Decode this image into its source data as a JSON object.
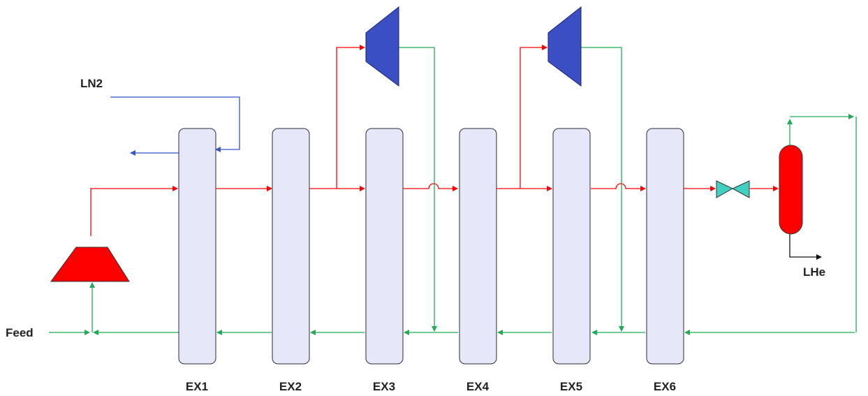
{
  "labels": {
    "ln2": "LN2",
    "feed": "Feed",
    "lhe": "LHe"
  },
  "exchangers": [
    {
      "id": "ex1",
      "label": "EX1"
    },
    {
      "id": "ex2",
      "label": "EX2"
    },
    {
      "id": "ex3",
      "label": "EX3"
    },
    {
      "id": "ex4",
      "label": "EX4"
    },
    {
      "id": "ex5",
      "label": "EX5"
    },
    {
      "id": "ex6",
      "label": "EX6"
    }
  ],
  "equipment": {
    "feed_compressor": "compressor",
    "expander_1": "expander",
    "expander_2": "expander",
    "jt_valve": "valve",
    "separator": "separator-vessel"
  },
  "colors": {
    "hot_stream": "#ff0000",
    "cold_stream": "#22aa55",
    "ln2_stream": "#3355cc",
    "exchanger_fill": "#e6e8fa",
    "expander_fill": "#3a4fc4",
    "compressor_fill": "#ff0000",
    "valve_fill": "#40d0c0",
    "separator_fill": "#ff0000"
  }
}
